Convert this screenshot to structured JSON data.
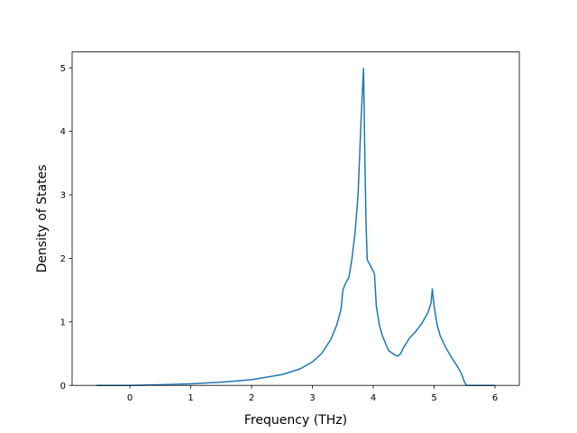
{
  "chart_data": {
    "type": "line",
    "title": "",
    "xlabel": "Frequency (THz)",
    "ylabel": "Density of States",
    "xlim": [
      -0.95,
      6.4
    ],
    "ylim": [
      0,
      5.25
    ],
    "xticks": [
      0,
      1,
      2,
      3,
      4,
      5,
      6
    ],
    "yticks": [
      0,
      1,
      2,
      3,
      4,
      5
    ],
    "grid": false,
    "legend": "none",
    "series": [
      {
        "color": "#1f77b4",
        "x": [
          -0.55,
          0,
          0.5,
          1.0,
          1.5,
          2.0,
          2.5,
          2.8,
          3.0,
          3.15,
          3.3,
          3.4,
          3.47,
          3.5,
          3.55,
          3.6,
          3.65,
          3.7,
          3.75,
          3.8,
          3.84,
          3.86,
          3.88,
          3.9,
          4.0,
          4.02,
          4.05,
          4.1,
          4.15,
          4.25,
          4.35,
          4.4,
          4.45,
          4.5,
          4.6,
          4.7,
          4.8,
          4.9,
          4.95,
          4.97,
          5.0,
          5.05,
          5.1,
          5.2,
          5.3,
          5.4,
          5.45,
          5.5,
          5.53,
          5.6,
          6.0
        ],
        "y": [
          0.0,
          0.0,
          0.01,
          0.025,
          0.05,
          0.09,
          0.17,
          0.26,
          0.37,
          0.5,
          0.72,
          0.95,
          1.2,
          1.5,
          1.62,
          1.7,
          2.0,
          2.4,
          3.0,
          4.2,
          4.99,
          3.7,
          2.6,
          1.98,
          1.8,
          1.75,
          1.25,
          0.95,
          0.78,
          0.55,
          0.48,
          0.46,
          0.5,
          0.6,
          0.75,
          0.85,
          0.98,
          1.15,
          1.3,
          1.52,
          1.25,
          0.95,
          0.78,
          0.58,
          0.42,
          0.27,
          0.18,
          0.05,
          0.0,
          0.0,
          0.0
        ]
      }
    ]
  }
}
